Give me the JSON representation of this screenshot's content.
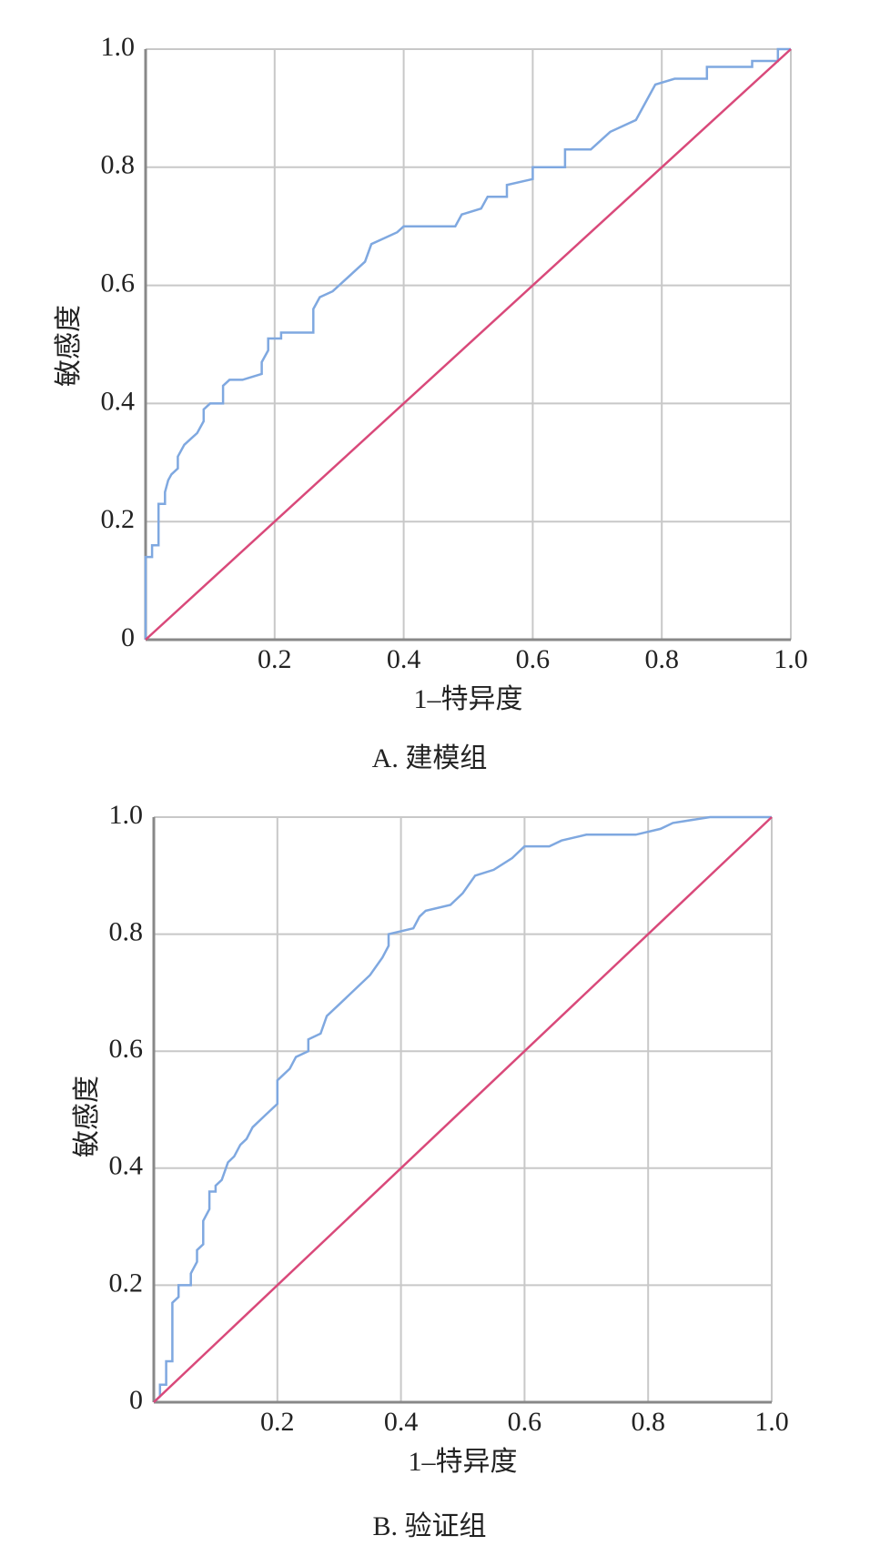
{
  "chart_data": [
    {
      "type": "line",
      "caption": "A. 建模组",
      "x_label": "1–特异度",
      "y_label": "敏感度",
      "xlim": [
        0,
        1
      ],
      "ylim": [
        0,
        1
      ],
      "xticks": [
        0.2,
        0.4,
        0.6,
        0.8,
        {
          "value": 1,
          "label": "1.0"
        }
      ],
      "yticks": [
        0,
        0.2,
        0.4,
        0.6,
        0.8,
        {
          "value": 1,
          "label": "1.0"
        }
      ],
      "grid": true,
      "series": [
        {
          "color": "#7fa8e0",
          "x": [
            0,
            0,
            0.01,
            0.01,
            0.02,
            0.02,
            0.03,
            0.03,
            0.035,
            0.04,
            0.05,
            0.05,
            0.06,
            0.07,
            0.08,
            0.09,
            0.09,
            0.1,
            0.12,
            0.12,
            0.13,
            0.15,
            0.18,
            0.18,
            0.19,
            0.19,
            0.21,
            0.21,
            0.26,
            0.26,
            0.27,
            0.29,
            0.3,
            0.31,
            0.33,
            0.34,
            0.35,
            0.37,
            0.39,
            0.4,
            0.48,
            0.49,
            0.52,
            0.53,
            0.56,
            0.56,
            0.6,
            0.6,
            0.65,
            0.65,
            0.69,
            0.7,
            0.72,
            0.74,
            0.76,
            0.77,
            0.78,
            0.79,
            0.82,
            0.87,
            0.87,
            0.94,
            0.94,
            0.98,
            0.98,
            1.0
          ],
          "values": [
            0,
            0.14,
            0.14,
            0.16,
            0.16,
            0.23,
            0.23,
            0.25,
            0.27,
            0.28,
            0.29,
            0.31,
            0.33,
            0.34,
            0.35,
            0.37,
            0.39,
            0.4,
            0.4,
            0.43,
            0.44,
            0.44,
            0.45,
            0.47,
            0.49,
            0.51,
            0.51,
            0.52,
            0.52,
            0.56,
            0.58,
            0.59,
            0.6,
            0.61,
            0.63,
            0.64,
            0.67,
            0.68,
            0.69,
            0.7,
            0.7,
            0.72,
            0.73,
            0.75,
            0.75,
            0.77,
            0.78,
            0.8,
            0.8,
            0.83,
            0.83,
            0.84,
            0.86,
            0.87,
            0.88,
            0.9,
            0.92,
            0.94,
            0.95,
            0.95,
            0.97,
            0.97,
            0.98,
            0.98,
            1.0,
            1.0
          ]
        },
        {
          "color": "#d9497a",
          "x": [
            0,
            1
          ],
          "values": [
            0,
            1
          ]
        }
      ]
    },
    {
      "type": "line",
      "caption": "B. 验证组",
      "x_label": "1–特异度",
      "y_label": "敏感度",
      "xlim": [
        0,
        1
      ],
      "ylim": [
        0,
        1
      ],
      "xticks": [
        0.2,
        0.4,
        0.6,
        0.8,
        {
          "value": 1,
          "label": "1.0"
        }
      ],
      "yticks": [
        0,
        0.2,
        0.4,
        0.6,
        0.8,
        {
          "value": 1,
          "label": "1.0"
        }
      ],
      "grid": true,
      "series": [
        {
          "color": "#7fa8e0",
          "x": [
            0,
            0.01,
            0.01,
            0.02,
            0.02,
            0.03,
            0.03,
            0.04,
            0.04,
            0.06,
            0.06,
            0.07,
            0.07,
            0.08,
            0.08,
            0.09,
            0.09,
            0.1,
            0.1,
            0.11,
            0.12,
            0.13,
            0.14,
            0.15,
            0.16,
            0.18,
            0.2,
            0.2,
            0.22,
            0.23,
            0.25,
            0.25,
            0.27,
            0.28,
            0.3,
            0.32,
            0.35,
            0.37,
            0.38,
            0.38,
            0.42,
            0.43,
            0.44,
            0.48,
            0.5,
            0.52,
            0.55,
            0.58,
            0.6,
            0.64,
            0.66,
            0.7,
            0.78,
            0.82,
            0.84,
            0.9,
            1.0
          ],
          "values": [
            0,
            0.01,
            0.03,
            0.03,
            0.07,
            0.07,
            0.17,
            0.18,
            0.2,
            0.2,
            0.22,
            0.24,
            0.26,
            0.27,
            0.31,
            0.33,
            0.36,
            0.36,
            0.37,
            0.38,
            0.41,
            0.42,
            0.44,
            0.45,
            0.47,
            0.49,
            0.51,
            0.55,
            0.57,
            0.59,
            0.6,
            0.62,
            0.63,
            0.66,
            0.68,
            0.7,
            0.73,
            0.76,
            0.78,
            0.8,
            0.81,
            0.83,
            0.84,
            0.85,
            0.87,
            0.9,
            0.91,
            0.93,
            0.95,
            0.95,
            0.96,
            0.97,
            0.97,
            0.98,
            0.99,
            1.0,
            1.0
          ]
        },
        {
          "color": "#d9497a",
          "x": [
            0,
            1
          ],
          "values": [
            0,
            1
          ]
        }
      ]
    }
  ]
}
